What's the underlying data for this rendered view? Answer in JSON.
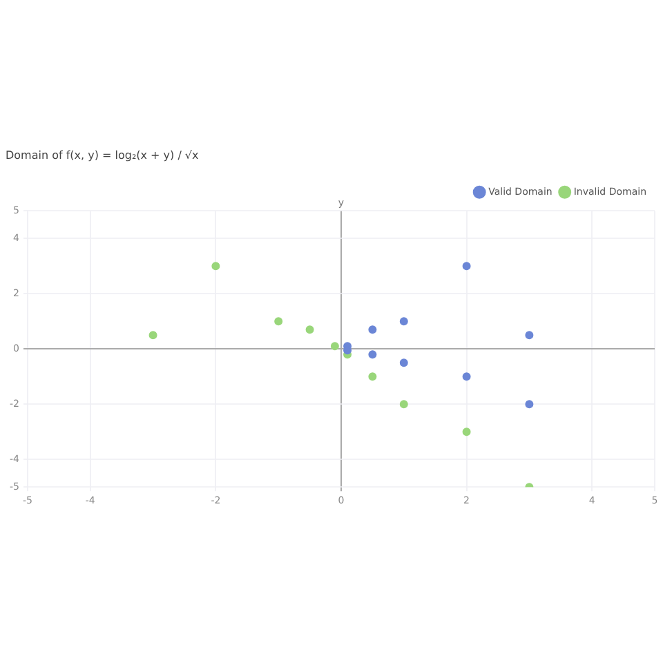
{
  "chart_data": {
    "type": "scatter",
    "title": "Domain of f(x, y) = log₂(x + y) / √x",
    "ylabel": "y",
    "series": [
      {
        "name": "Valid Domain",
        "color": "#6b86d6",
        "x": [
          0.1,
          0.1,
          0.5,
          0.5,
          1,
          1,
          2,
          2,
          3,
          3
        ],
        "values": [
          0.1,
          -0.05,
          0.7,
          -0.2,
          1,
          -0.5,
          3,
          -1,
          0.5,
          -2
        ]
      },
      {
        "name": "Invalid Domain",
        "color": "#99d67a",
        "x": [
          -3,
          -2,
          -1,
          -0.5,
          -0.1,
          0.1,
          0.5,
          1,
          2,
          3
        ],
        "values": [
          0.5,
          3,
          1,
          0.7,
          0.1,
          -0.2,
          -1,
          -2,
          -3,
          -5
        ]
      }
    ],
    "xlim": [
      -5,
      5
    ],
    "xticks": [
      -5,
      -4,
      -2,
      0,
      2,
      4,
      5
    ],
    "ylim": [
      -5,
      5
    ],
    "yticks": [
      -5,
      -4,
      -2,
      0,
      2,
      4,
      5
    ],
    "grid": true,
    "legend": "top right",
    "marker": "circle"
  }
}
